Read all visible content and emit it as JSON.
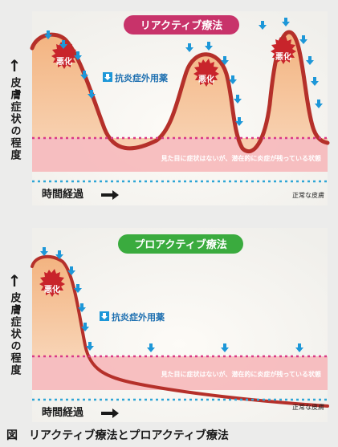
{
  "axis": {
    "y_label": "皮膚症状の程度",
    "x_label": "時間経過"
  },
  "panels": [
    {
      "title": "リアクティブ療法",
      "title_color": "#c8336a",
      "drug_label": "抗炎症外用薬",
      "flare_label": "悪化",
      "band_label": "見た目に症状はないが、潜在的に炎症が残っている状態",
      "normal_label": "正常な皮膚"
    },
    {
      "title": "プロアクティブ療法",
      "title_color": "#3aab3e",
      "drug_label": "抗炎症外用薬",
      "flare_label": "悪化",
      "band_label": "見た目に症状はないが、潜在的に炎症が残っている状態",
      "normal_label": "正常な皮膚"
    }
  ],
  "caption": {
    "figure": "図",
    "text": "リアクティブ療法とプロアクティブ療法"
  },
  "colors": {
    "curve": "#b5302a",
    "fill_top": "#f2a86a",
    "band": "#f6b6b9",
    "arrow": "#1d97d8",
    "dotted": "#d93a86",
    "normal": "#2fa6d6"
  }
}
